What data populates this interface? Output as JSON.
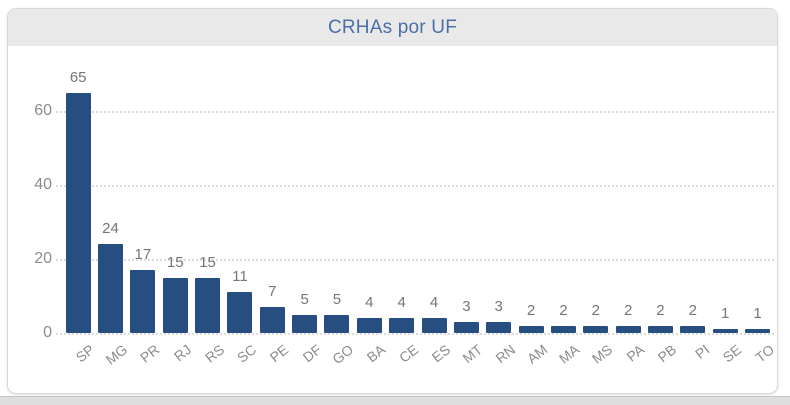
{
  "card": {
    "title": "CRHAs por UF"
  },
  "colors": {
    "bar": "#264E80",
    "title": "#4A70A8",
    "header_bg": "#E9E9E9",
    "card_border": "#D9D9D9",
    "axis_label": "#8C8C8C",
    "data_label": "#767676",
    "gridline": "#DCDCDC",
    "bottom_strip": "#DFDFDF"
  },
  "chart_data": {
    "type": "bar",
    "title": "CRHAs por UF",
    "categories": [
      "SP",
      "MG",
      "PR",
      "RJ",
      "RS",
      "SC",
      "PE",
      "DF",
      "GO",
      "BA",
      "CE",
      "ES",
      "MT",
      "RN",
      "AM",
      "MA",
      "MS",
      "PA",
      "PB",
      "PI",
      "SE",
      "TO"
    ],
    "values": [
      65,
      24,
      17,
      15,
      15,
      11,
      7,
      5,
      5,
      4,
      4,
      4,
      3,
      3,
      2,
      2,
      2,
      2,
      2,
      2,
      1,
      1
    ],
    "xlabel": "",
    "ylabel": "",
    "ylim": [
      0,
      70
    ],
    "yticks": [
      0,
      20,
      40,
      60
    ],
    "grid": "horizontal-dotted",
    "legend": "none",
    "data_labels": true,
    "x_label_rotation_deg": -38
  }
}
